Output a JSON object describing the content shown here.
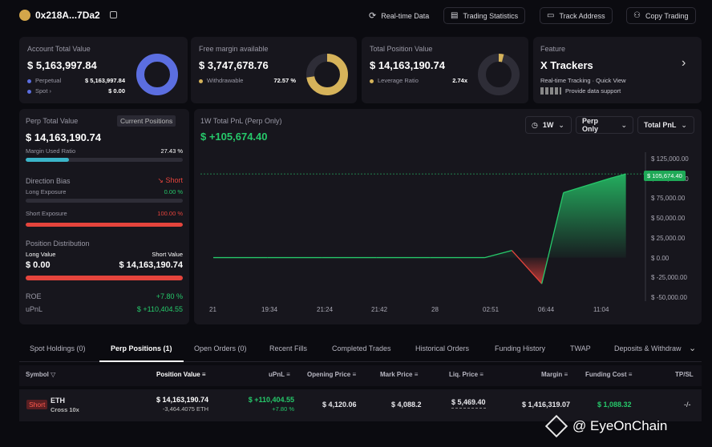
{
  "header": {
    "address": "0x218A...7Da2",
    "buttons": [
      "Real-time Data",
      "Trading Statistics",
      "Track Address",
      "Copy Trading"
    ]
  },
  "cards": {
    "account": {
      "title": "Account Total Value",
      "value": "$ 5,163,997.84",
      "rows": [
        {
          "label": "Perpetual",
          "value": "$ 5,163,997.84"
        },
        {
          "label": "Spot",
          "value": "$ 0.00"
        }
      ],
      "ring_fraction": 1.0,
      "ring_color": "#5b6ee0"
    },
    "margin": {
      "title": "Free margin available",
      "value": "$ 3,747,678.76",
      "row_label": "Withdrawable",
      "row_value": "72.57 %",
      "ring_fraction": 0.7257,
      "ring_color": "#d6b35a"
    },
    "position": {
      "title": "Total Position Value",
      "value": "$ 14,163,190.74",
      "row_label": "Leverage Ratio",
      "row_value": "2.74x",
      "ring_fraction": 0.04,
      "ring_color": "#d6b35a"
    },
    "feature": {
      "title": "Feature",
      "name": "X Trackers",
      "line1": "Real-time Tracking · Quick View",
      "line2": "Provide data support"
    }
  },
  "perp": {
    "title": "Perp Total Value",
    "tag": "Current Positions",
    "value": "$ 14,163,190.74",
    "margin_used_label": "Margin Used Ratio",
    "margin_used_value": "27.43 %",
    "margin_used_fraction": 0.2743,
    "direction_label": "Direction Bias",
    "direction_value": "Short",
    "long_label": "Long Exposure",
    "long_value": "0.00 %",
    "long_fraction": 0,
    "short_label": "Short Exposure",
    "short_value": "100.00 %",
    "short_fraction": 1.0,
    "distribution_label": "Position Distribution",
    "long_value_label": "Long Value",
    "short_value_label": "Short Value",
    "long_amount": "$ 0.00",
    "short_amount": "$ 14,163,190.74",
    "roe_label": "ROE",
    "roe_value": "+7.80 %",
    "upnl_label": "uPnL",
    "upnl_value": "$ +110,404.55"
  },
  "chart_panel": {
    "title": "1W Total PnL (Perp Only)",
    "value": "$ +105,674.40",
    "period": "1W",
    "filter1": "Perp Only",
    "filter2": "Total PnL"
  },
  "chart_data": {
    "type": "area",
    "x": [
      "21",
      "19:34",
      "21:24",
      "21:42",
      "28",
      "02:51",
      "06:44",
      "11:04"
    ],
    "x_tick_labels": [
      "21",
      "19:34",
      "21:24",
      "21:42",
      "28",
      "02:51",
      "06:44",
      "11:04"
    ],
    "y_tick_labels": [
      "$ 125,000.00",
      "$ 100,000.00",
      "$ 75,000.00",
      "$ 50,000.00",
      "$ 25,000.00",
      "$ 0.00",
      "$ -25,000.00",
      "$ -50,000.00"
    ],
    "ylim": [
      -50000,
      125000
    ],
    "current_label": "$ 105,674.40",
    "series": [
      {
        "points": [
          [
            0,
            0
          ],
          [
            1,
            0
          ],
          [
            2,
            0
          ],
          [
            3,
            0
          ],
          [
            4,
            0
          ],
          [
            5,
            0
          ],
          [
            5.5,
            9000
          ],
          [
            6.05,
            -33000
          ],
          [
            6.45,
            82000
          ],
          [
            7.3,
            100000
          ],
          [
            7.6,
            105674.4
          ]
        ]
      }
    ],
    "colors": {
      "positive": "#26c86a",
      "negative": "#e5443c"
    }
  },
  "tabs": [
    "Spot Holdings (0)",
    "Perp Positions (1)",
    "Open Orders (0)",
    "Recent Fills",
    "Completed Trades",
    "Historical Orders",
    "Funding History",
    "TWAP",
    "Deposits & Withdraw"
  ],
  "active_tab": 1,
  "table": {
    "headers": [
      "Symbol",
      "Position Value",
      "uPnL",
      "Opening Price",
      "Mark Price",
      "Liq. Price",
      "Margin",
      "Funding Cost",
      "TP/SL"
    ],
    "row": {
      "side": "Short",
      "coin": "ETH",
      "mode": "Cross 10x",
      "position_value": "$ 14,163,190.74",
      "position_size": "-3,464.4075 ETH",
      "upnl": "$ +110,404.55",
      "upnl_pct": "+7.80 %",
      "opening_price": "$ 4,120.06",
      "mark_price": "$ 4,088.2",
      "liq_price": "$ 5,469.40",
      "margin": "$ 1,416,319.07",
      "funding_cost": "$ 1,088.32",
      "tpsl": "-/-"
    }
  },
  "watermark": "@ EyeOnChain"
}
